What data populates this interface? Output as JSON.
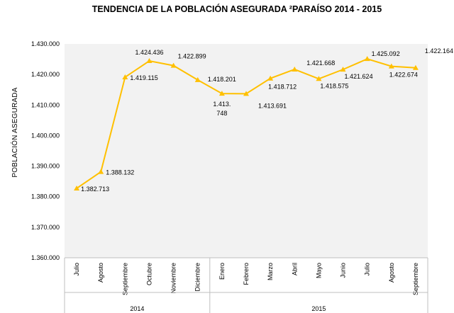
{
  "chart_data": {
    "type": "line",
    "title": "TENDENCIA DE LA POBLACIÓN ASEGURADA ²PARAÍSO 2014 - 2015",
    "ylabel": "POBLACIÓN ASEGURADA",
    "xlabel": "",
    "ylim": [
      1360000,
      1430000
    ],
    "yticks": [
      "1.360.000",
      "1.370.000",
      "1.380.000",
      "1.390.000",
      "1.400.000",
      "1.410.000",
      "1.420.000",
      "1.430.000"
    ],
    "ytick_values": [
      1360000,
      1370000,
      1380000,
      1390000,
      1400000,
      1410000,
      1420000,
      1430000
    ],
    "categories": [
      "Julio",
      "Agosto",
      "Septiembre",
      "Octubre",
      "Noviembre",
      "Diciembre",
      "Enero",
      "Febrero",
      "Marzo",
      "Abril",
      "Mayo",
      "Junio",
      "Julio",
      "Agosto",
      "Septiembre"
    ],
    "groups": [
      {
        "label": "2014",
        "count": 6
      },
      {
        "label": "2015",
        "count": 9
      }
    ],
    "values": [
      1382713,
      1388132,
      1419115,
      1424436,
      1422899,
      1418201,
      1413748,
      1413691,
      1418712,
      1421668,
      1418575,
      1421624,
      1425092,
      1422674,
      1422164
    ],
    "labels": [
      "1.382.713",
      "1.388.132",
      "1.419.115",
      "1.424.436",
      "1.422.899",
      "1.418.201",
      "1.413.748",
      "1.413.691",
      "1.418.712",
      "1.421.668",
      "1.418.575",
      "1.421.624",
      "1.425.092",
      "1.422.674",
      "1.422.164"
    ],
    "line_color": "#FFC000",
    "grid": false,
    "legend": "none"
  }
}
